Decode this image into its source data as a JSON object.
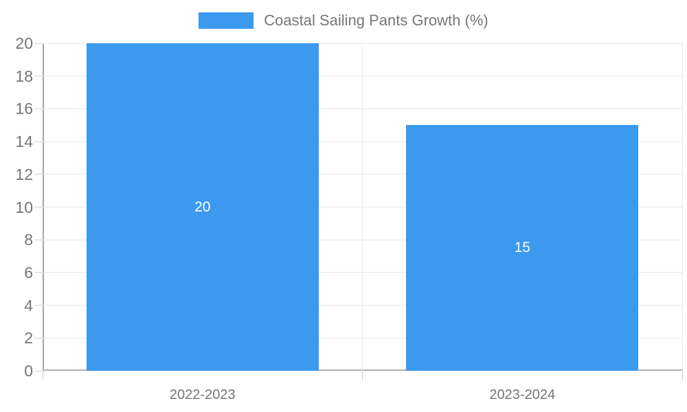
{
  "chart_data": {
    "type": "bar",
    "title": "Coastal Sailing Pants Growth (%)",
    "categories": [
      "2022-2023",
      "2023-2024"
    ],
    "values": [
      20,
      15
    ],
    "xlabel": "",
    "ylabel": "",
    "ylim": [
      0,
      20
    ],
    "yticks": [
      0,
      2,
      4,
      6,
      8,
      10,
      12,
      14,
      16,
      18,
      20
    ],
    "grid": true,
    "legend_position": "top",
    "bar_color": "#3b99ee",
    "bar_label_color": "#ffffff"
  },
  "colors": {
    "accent": "#3b99ee",
    "text": "#757575",
    "gridline": "#e8e8e8",
    "axis_left": "#a6a6a6",
    "axis_bottom": "#b0b0b0"
  }
}
